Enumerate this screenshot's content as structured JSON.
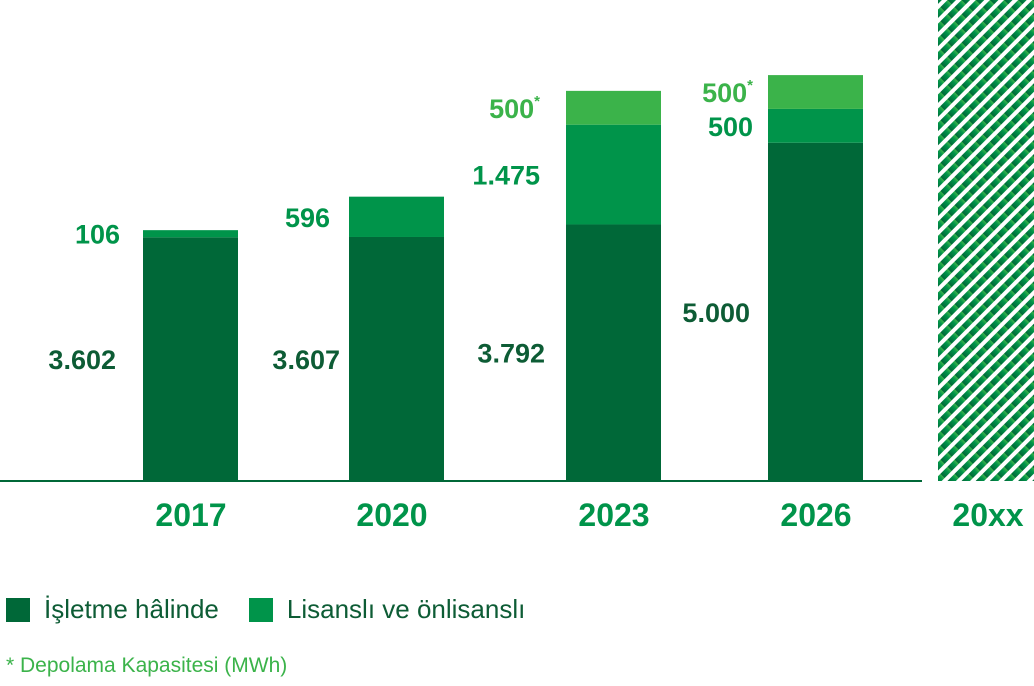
{
  "chart_data": {
    "type": "bar",
    "stacked": true,
    "categories": [
      "2017",
      "2020",
      "2023",
      "2026",
      "20xx"
    ],
    "series": [
      {
        "name": "İşletme hâlinde",
        "color": "#006838",
        "values": [
          3602,
          3607,
          3792,
          5000,
          null
        ],
        "labels": [
          "3.602",
          "3.607",
          "3.792",
          "5.000",
          ""
        ]
      },
      {
        "name": "Lisanslı ve önlisanslı",
        "color": "#00944a",
        "values": [
          106,
          596,
          1475,
          500,
          null
        ],
        "labels": [
          "106",
          "596",
          "1.475",
          "500",
          ""
        ]
      },
      {
        "name": "Depolama Kapasitesi (MWh)",
        "color": "#3bb34a",
        "values": [
          null,
          null,
          500,
          500,
          null
        ],
        "labels": [
          "",
          "",
          "500",
          "500",
          ""
        ],
        "label_suffix": "*"
      }
    ],
    "hatched_category": "20xx",
    "colors": {
      "dark": "#006838",
      "mid": "#00944a",
      "light": "#3bb34a",
      "axis": "#006838",
      "hatch_dark": "#006838",
      "hatch_light": "#3bb34a"
    }
  },
  "legend": {
    "items": [
      {
        "label": "İşletme hâlinde",
        "color": "#006838"
      },
      {
        "label": "Lisanslı ve önlisanslı",
        "color": "#00944a"
      }
    ]
  },
  "footnote": "* Depolama Kapasitesi (MWh)"
}
